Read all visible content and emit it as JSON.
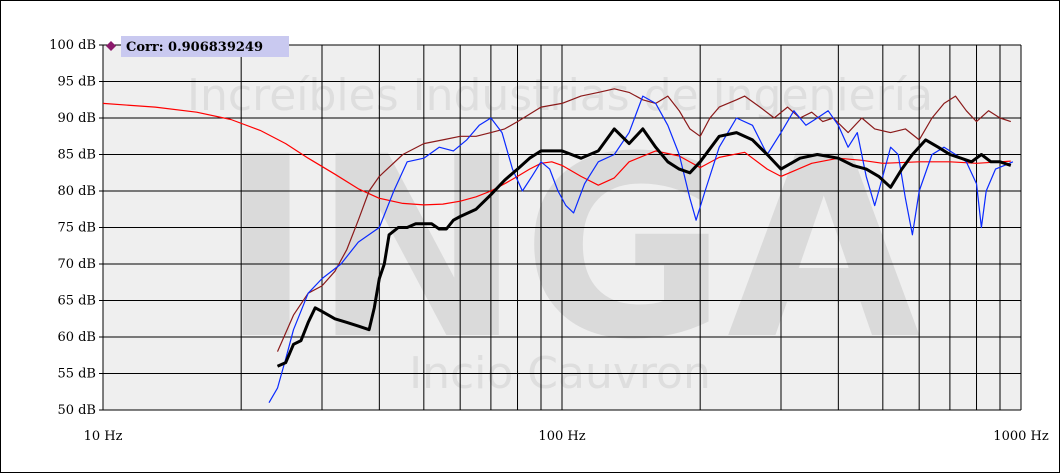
{
  "chart_data": {
    "type": "line",
    "x_scale": "log",
    "xlim": [
      10,
      1000
    ],
    "ylim": [
      50,
      100
    ],
    "y_ticks": [
      "100 dB",
      "95 dB",
      "90 dB",
      "85 dB",
      "80 dB",
      "75 dB",
      "70 dB",
      "65 dB",
      "60 dB",
      "55 dB",
      "50 dB"
    ],
    "x_ticks": [
      "10 Hz",
      "100 Hz",
      "1000 Hz"
    ],
    "grid": true,
    "watermark": {
      "line1": "Increíbles Industrias de Ingeniería",
      "logo": "INGA",
      "line2": "Incio Cauvron"
    },
    "legend": {
      "label": "Corr: 0.906839249",
      "marker_color": "#8B1A6B"
    },
    "series": [
      {
        "color": "#ff0000",
        "points": [
          [
            10,
            92
          ],
          [
            13,
            91.5
          ],
          [
            16,
            90.8
          ],
          [
            19,
            89.8
          ],
          [
            22,
            88.3
          ],
          [
            25,
            86.5
          ],
          [
            28,
            84.5
          ],
          [
            32,
            82.3
          ],
          [
            36,
            80.3
          ],
          [
            40,
            79
          ],
          [
            45,
            78.3
          ],
          [
            50,
            78.1
          ],
          [
            55,
            78.2
          ],
          [
            60,
            78.6
          ],
          [
            65,
            79.2
          ],
          [
            70,
            80
          ],
          [
            75,
            81
          ],
          [
            80,
            82
          ],
          [
            85,
            83
          ],
          [
            90,
            83.8
          ],
          [
            95,
            84
          ],
          [
            100,
            83.5
          ],
          [
            110,
            82
          ],
          [
            120,
            80.8
          ],
          [
            130,
            81.8
          ],
          [
            140,
            84
          ],
          [
            160,
            85.5
          ],
          [
            180,
            84.8
          ],
          [
            200,
            83.2
          ],
          [
            220,
            84.6
          ],
          [
            250,
            85.3
          ],
          [
            280,
            83
          ],
          [
            300,
            82
          ],
          [
            350,
            83.8
          ],
          [
            400,
            84.5
          ],
          [
            450,
            84.2
          ],
          [
            500,
            83.8
          ],
          [
            600,
            84
          ],
          [
            700,
            84
          ],
          [
            800,
            83.8
          ],
          [
            900,
            84
          ],
          [
            950,
            84.1
          ]
        ]
      },
      {
        "color": "#8b1a1a",
        "points": [
          [
            24,
            58
          ],
          [
            26,
            63
          ],
          [
            28,
            66
          ],
          [
            30,
            67
          ],
          [
            32,
            69
          ],
          [
            34,
            72
          ],
          [
            36,
            76
          ],
          [
            38,
            80
          ],
          [
            40,
            82
          ],
          [
            45,
            85
          ],
          [
            50,
            86.5
          ],
          [
            55,
            87
          ],
          [
            60,
            87.5
          ],
          [
            65,
            87.5
          ],
          [
            70,
            88
          ],
          [
            75,
            88.5
          ],
          [
            80,
            89.5
          ],
          [
            90,
            91.5
          ],
          [
            100,
            92
          ],
          [
            110,
            93
          ],
          [
            120,
            93.5
          ],
          [
            130,
            94
          ],
          [
            140,
            93.5
          ],
          [
            150,
            92.5
          ],
          [
            160,
            92
          ],
          [
            170,
            93
          ],
          [
            180,
            91
          ],
          [
            190,
            88.5
          ],
          [
            200,
            87.5
          ],
          [
            210,
            90
          ],
          [
            220,
            91.5
          ],
          [
            240,
            92.5
          ],
          [
            250,
            93
          ],
          [
            270,
            91.5
          ],
          [
            290,
            90
          ],
          [
            310,
            91.5
          ],
          [
            330,
            90
          ],
          [
            350,
            90.8
          ],
          [
            370,
            89.5
          ],
          [
            390,
            90
          ],
          [
            420,
            88
          ],
          [
            450,
            90
          ],
          [
            480,
            88.5
          ],
          [
            520,
            88
          ],
          [
            560,
            88.5
          ],
          [
            600,
            87
          ],
          [
            640,
            90
          ],
          [
            680,
            92
          ],
          [
            720,
            93
          ],
          [
            760,
            91
          ],
          [
            800,
            89.5
          ],
          [
            850,
            91
          ],
          [
            900,
            90
          ],
          [
            950,
            89.5
          ]
        ]
      },
      {
        "color": "#0a2aff",
        "points": [
          [
            23,
            51
          ],
          [
            24,
            53
          ],
          [
            25,
            57
          ],
          [
            26,
            61
          ],
          [
            28,
            66
          ],
          [
            30,
            68
          ],
          [
            33,
            70
          ],
          [
            36,
            73
          ],
          [
            40,
            75
          ],
          [
            43,
            80
          ],
          [
            46,
            84
          ],
          [
            50,
            84.5
          ],
          [
            54,
            86
          ],
          [
            58,
            85.5
          ],
          [
            62,
            87
          ],
          [
            66,
            89
          ],
          [
            70,
            90
          ],
          [
            74,
            88
          ],
          [
            78,
            83
          ],
          [
            82,
            80
          ],
          [
            86,
            82
          ],
          [
            90,
            84
          ],
          [
            94,
            83
          ],
          [
            98,
            80
          ],
          [
            102,
            78
          ],
          [
            106,
            77
          ],
          [
            112,
            81
          ],
          [
            120,
            84
          ],
          [
            130,
            85
          ],
          [
            140,
            88
          ],
          [
            150,
            93
          ],
          [
            160,
            92
          ],
          [
            170,
            89
          ],
          [
            180,
            85
          ],
          [
            190,
            79
          ],
          [
            196,
            76
          ],
          [
            205,
            80
          ],
          [
            220,
            86
          ],
          [
            240,
            90
          ],
          [
            260,
            89
          ],
          [
            280,
            85
          ],
          [
            300,
            88
          ],
          [
            320,
            91
          ],
          [
            340,
            89
          ],
          [
            360,
            90
          ],
          [
            380,
            91
          ],
          [
            400,
            89
          ],
          [
            420,
            86
          ],
          [
            440,
            88
          ],
          [
            460,
            82
          ],
          [
            480,
            78
          ],
          [
            500,
            82
          ],
          [
            520,
            86
          ],
          [
            540,
            85
          ],
          [
            560,
            79
          ],
          [
            580,
            74
          ],
          [
            600,
            80
          ],
          [
            640,
            85
          ],
          [
            680,
            86
          ],
          [
            720,
            85
          ],
          [
            760,
            84
          ],
          [
            800,
            81
          ],
          [
            820,
            75
          ],
          [
            840,
            80
          ],
          [
            880,
            83
          ],
          [
            920,
            83.5
          ],
          [
            960,
            84
          ]
        ]
      },
      {
        "color": "#000000",
        "points": [
          [
            24,
            56
          ],
          [
            25,
            56.5
          ],
          [
            26,
            59
          ],
          [
            27,
            59.5
          ],
          [
            28,
            62
          ],
          [
            29,
            64
          ],
          [
            30,
            63.5
          ],
          [
            32,
            62.5
          ],
          [
            34,
            62
          ],
          [
            36,
            61.5
          ],
          [
            38,
            61
          ],
          [
            39,
            64
          ],
          [
            40,
            68
          ],
          [
            41,
            70
          ],
          [
            42,
            74
          ],
          [
            44,
            75
          ],
          [
            46,
            75
          ],
          [
            48,
            75.5
          ],
          [
            50,
            75.5
          ],
          [
            52,
            75.5
          ],
          [
            54,
            74.8
          ],
          [
            56,
            74.8
          ],
          [
            58,
            76
          ],
          [
            60,
            76.5
          ],
          [
            65,
            77.5
          ],
          [
            70,
            79.5
          ],
          [
            75,
            81.5
          ],
          [
            80,
            83
          ],
          [
            85,
            84.5
          ],
          [
            90,
            85.5
          ],
          [
            100,
            85.5
          ],
          [
            110,
            84.5
          ],
          [
            120,
            85.5
          ],
          [
            130,
            88.5
          ],
          [
            140,
            86.5
          ],
          [
            150,
            88.5
          ],
          [
            160,
            86
          ],
          [
            170,
            84
          ],
          [
            180,
            83
          ],
          [
            190,
            82.5
          ],
          [
            200,
            84
          ],
          [
            220,
            87.5
          ],
          [
            240,
            88
          ],
          [
            260,
            87
          ],
          [
            280,
            85
          ],
          [
            300,
            83
          ],
          [
            330,
            84.5
          ],
          [
            360,
            85
          ],
          [
            400,
            84.5
          ],
          [
            430,
            83.5
          ],
          [
            460,
            83
          ],
          [
            490,
            82
          ],
          [
            520,
            80.5
          ],
          [
            550,
            83
          ],
          [
            580,
            85
          ],
          [
            620,
            87
          ],
          [
            660,
            86
          ],
          [
            700,
            85
          ],
          [
            740,
            84.5
          ],
          [
            780,
            84
          ],
          [
            820,
            85
          ],
          [
            860,
            84
          ],
          [
            900,
            84
          ],
          [
            950,
            83.5
          ]
        ]
      }
    ]
  }
}
